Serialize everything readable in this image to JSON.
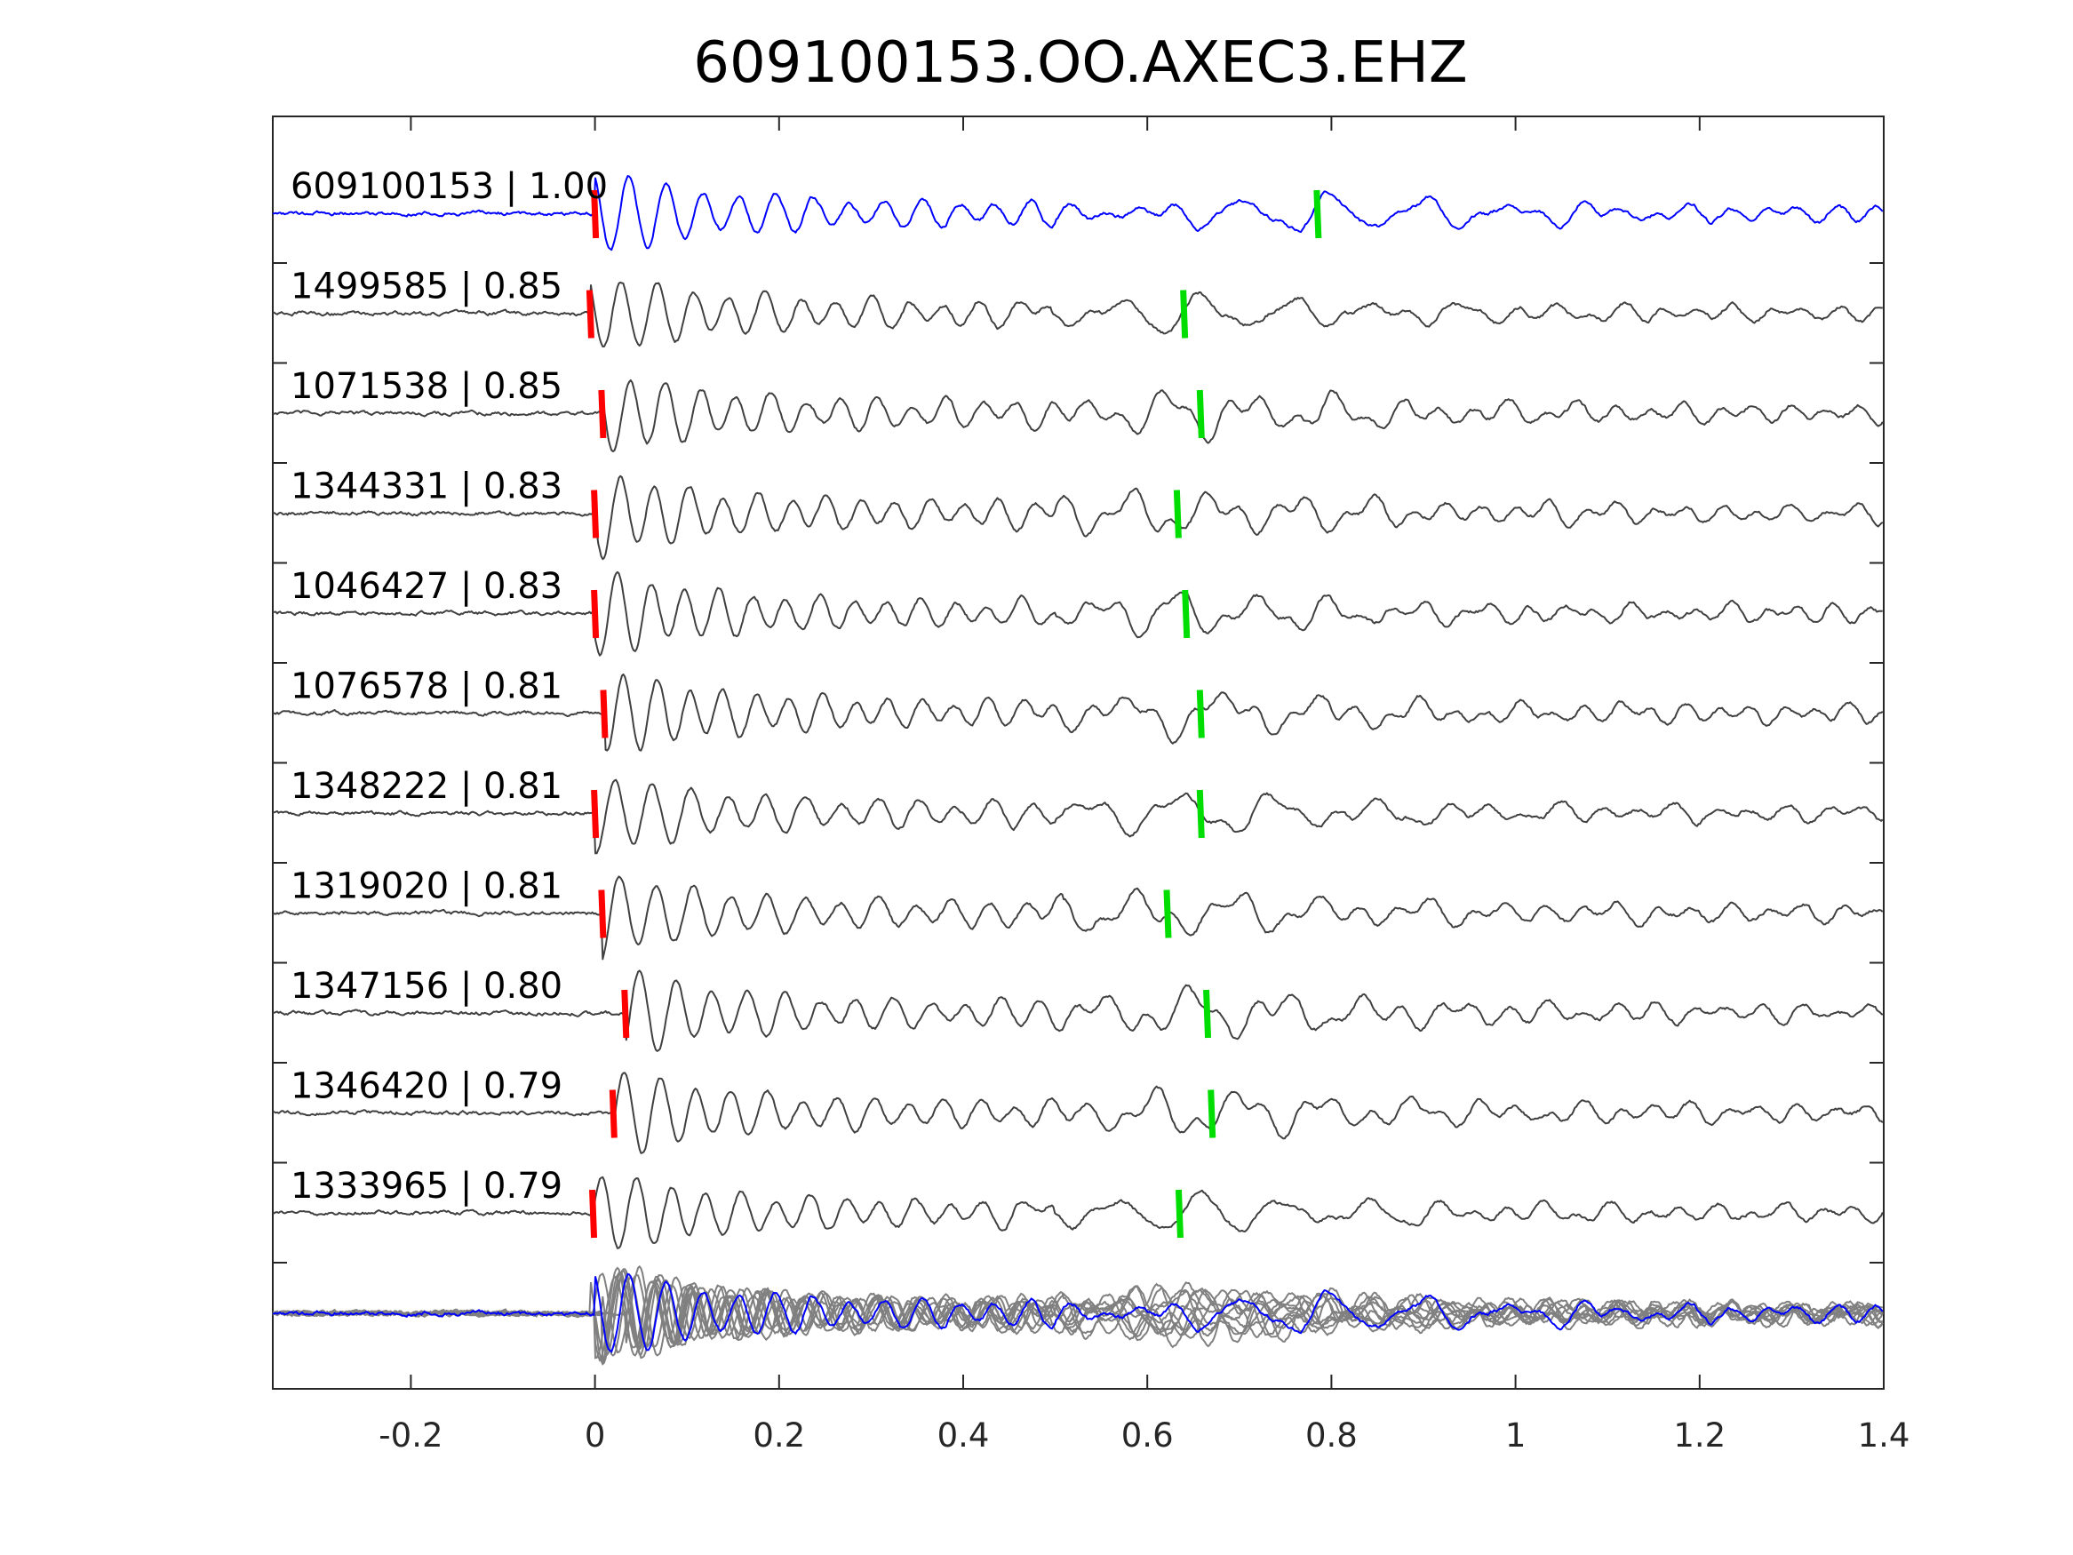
{
  "chart_data": {
    "type": "line",
    "title": "609100153.OO.AXEC3.EHZ",
    "xlabel": "",
    "ylabel": "",
    "xlim": [
      -0.35,
      1.4
    ],
    "x_ticks": [
      -0.2,
      0,
      0.2,
      0.4,
      0.6,
      0.8,
      1,
      1.2,
      1.4
    ],
    "x_tick_labels": [
      "-0.2",
      "0",
      "0.2",
      "0.4",
      "0.6",
      "0.8",
      "1",
      "1.2",
      "1.4"
    ],
    "grid": false,
    "colors": {
      "reference_trace": "#0000ff",
      "template_trace": "#404040",
      "stack_trace": "#808080",
      "p_pick": "#ff0000",
      "s_pick": "#00dd00"
    },
    "series": [
      {
        "label": "609100153 | 1.00",
        "p_pick": 0.0,
        "s_pick": 0.785,
        "role": "reference"
      },
      {
        "label": "1499585 | 0.85",
        "p_pick": -0.005,
        "s_pick": 0.64,
        "role": "template"
      },
      {
        "label": "1071538 | 0.85",
        "p_pick": 0.008,
        "s_pick": 0.658,
        "role": "template"
      },
      {
        "label": "1344331 | 0.83",
        "p_pick": 0.0,
        "s_pick": 0.633,
        "role": "template"
      },
      {
        "label": "1046427 | 0.83",
        "p_pick": 0.0,
        "s_pick": 0.642,
        "role": "template"
      },
      {
        "label": "1076578 | 0.81",
        "p_pick": 0.01,
        "s_pick": 0.658,
        "role": "template"
      },
      {
        "label": "1348222 | 0.81",
        "p_pick": 0.0,
        "s_pick": 0.658,
        "role": "template"
      },
      {
        "label": "1319020 | 0.81",
        "p_pick": 0.008,
        "s_pick": 0.622,
        "role": "template"
      },
      {
        "label": "1347156 | 0.80",
        "p_pick": 0.033,
        "s_pick": 0.665,
        "role": "template"
      },
      {
        "label": "1346420 | 0.79",
        "p_pick": 0.02,
        "s_pick": 0.67,
        "role": "template"
      },
      {
        "label": "1333965 | 0.79",
        "p_pick": -0.002,
        "s_pick": 0.635,
        "role": "template"
      }
    ],
    "stack": {
      "overlay_count": 10,
      "reference_index": 0
    }
  }
}
